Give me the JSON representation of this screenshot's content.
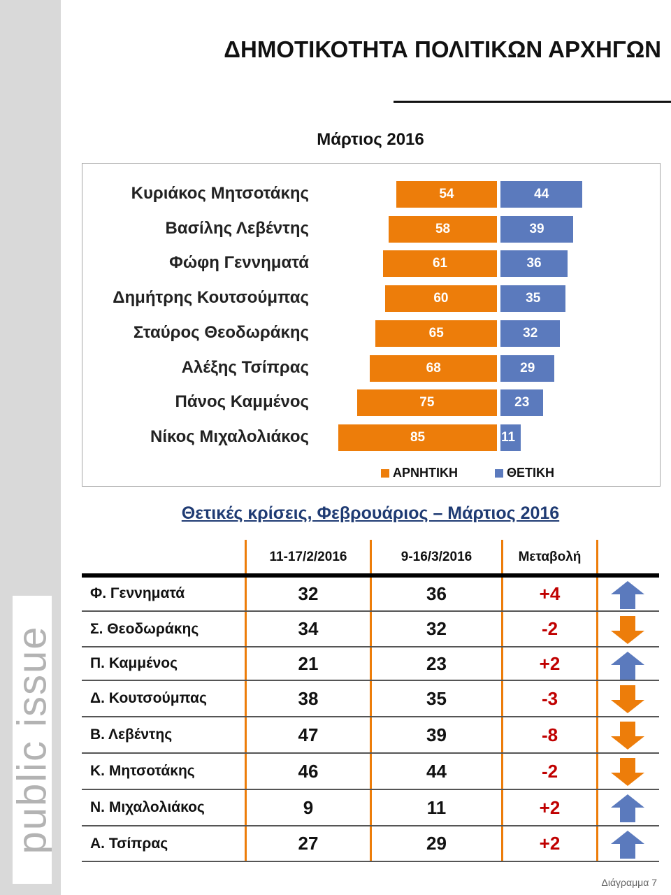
{
  "title": "ΔΗΜΟΤΙΚΟΤΗΤΑ ΠΟΛΙΤΙΚΩΝ ΑΡΧΗΓΩΝ",
  "subtitle": "Μάρτιος 2016",
  "logo_text": "public issue",
  "chart_data": {
    "type": "bar",
    "orientation": "horizontal-diverging",
    "categories": [
      "Κυριάκος Μητσοτάκης",
      "Βασίλης Λεβέντης",
      "Φώφη Γεννηματά",
      "Δημήτρης Κουτσούμπας",
      "Σταύρος Θεοδωράκης",
      "Αλέξης Τσίπρας",
      "Πάνος Καμμένος",
      "Νίκος Μιχαλολιάκος"
    ],
    "series": [
      {
        "name": "ΑΡΝΗΤΙΚΗ",
        "color": "#ed7d0a",
        "values": [
          54,
          58,
          61,
          60,
          65,
          68,
          75,
          85
        ]
      },
      {
        "name": "ΘΕΤΙΚΗ",
        "color": "#5b7abd",
        "values": [
          44,
          39,
          36,
          35,
          32,
          29,
          23,
          11
        ]
      }
    ],
    "legend": "bottom",
    "grid": false
  },
  "table": {
    "title": "Θετικές κρίσεις, Φεβρουάριος – Μάρτιος 2016",
    "headers": [
      "11-17/2/2016",
      "9-16/3/2016",
      "Μεταβολή"
    ],
    "rows": [
      {
        "name": "Φ. Γεννηματά",
        "feb": "32",
        "mar": "36",
        "change": "+4",
        "dir": "up"
      },
      {
        "name": "Σ. Θεοδωράκης",
        "feb": "34",
        "mar": "32",
        "change": "-2",
        "dir": "down"
      },
      {
        "name": "Π. Καμμένος",
        "feb": "21",
        "mar": "23",
        "change": "+2",
        "dir": "up"
      },
      {
        "name": "Δ. Κουτσούμπας",
        "feb": "38",
        "mar": "35",
        "change": "-3",
        "dir": "down"
      },
      {
        "name": "Β. Λεβέντης",
        "feb": "47",
        "mar": "39",
        "change": "-8",
        "dir": "down"
      },
      {
        "name": "Κ. Μητσοτάκης",
        "feb": "46",
        "mar": "44",
        "change": "-2",
        "dir": "down"
      },
      {
        "name": "Ν. Μιχαλολιάκος",
        "feb": "9",
        "mar": "11",
        "change": "+2",
        "dir": "up"
      },
      {
        "name": "Α. Τσίπρας",
        "feb": "27",
        "mar": "29",
        "change": "+2",
        "dir": "up"
      }
    ],
    "up_color": "#5b7abd",
    "down_color": "#ed7d0a"
  },
  "footer": "Διάγραμμα 7"
}
